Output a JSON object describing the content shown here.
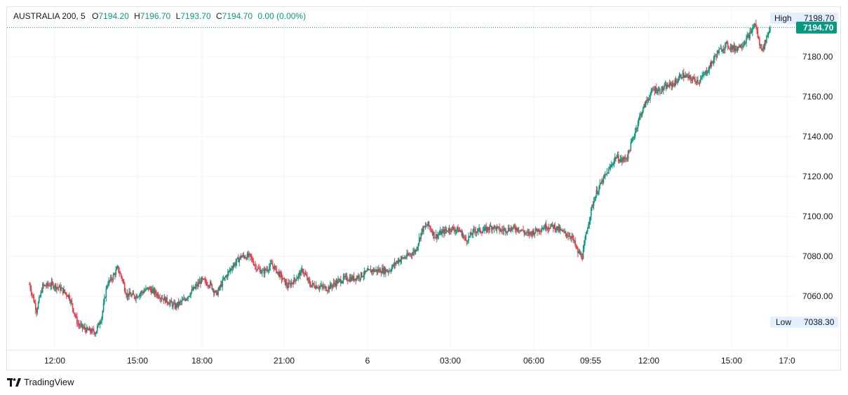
{
  "legend": {
    "symbol": "AUSTRALIA 200, 5",
    "open_label": "O",
    "open": "7194.20",
    "high_label": "H",
    "high": "7196.70",
    "low_label": "L",
    "low": "7193.70",
    "close_label": "C",
    "close": "7194.70",
    "change": "0.00 (0.00%)"
  },
  "price_markers": {
    "high_label": "High",
    "high_value": "7198.70",
    "last_value": "7194.70",
    "low_label": "Low",
    "low_value": "7038.30"
  },
  "colors": {
    "up": "#089981",
    "down": "#f23645",
    "grid": "#f0f3fa",
    "last_price": "#089981",
    "badge_bg": "#e3effd"
  },
  "brand": {
    "name": "TradingView",
    "icon": "tradingview-logo-icon"
  },
  "chart_data": {
    "type": "candlestick",
    "y_axis": {
      "ticks": [
        7060,
        7080,
        7100,
        7120,
        7140,
        7160,
        7180
      ],
      "min": 7033,
      "max": 7205,
      "decimals": 2
    },
    "x_axis": {
      "ticks": [
        "12:00",
        "15:00",
        "18:00",
        "21:00",
        "6",
        "03:00",
        "06:00",
        "09:55",
        "12:00",
        "15:00",
        "17:0"
      ]
    },
    "high": 7198.7,
    "low": 7038.3,
    "last": 7194.7,
    "price_path": [
      [
        0,
        7066
      ],
      [
        8,
        7053
      ],
      [
        15,
        7065
      ],
      [
        25,
        7066
      ],
      [
        35,
        7064
      ],
      [
        45,
        7060
      ],
      [
        55,
        7046
      ],
      [
        65,
        7043
      ],
      [
        75,
        7042
      ],
      [
        82,
        7050
      ],
      [
        88,
        7066
      ],
      [
        95,
        7070
      ],
      [
        100,
        7074
      ],
      [
        105,
        7069
      ],
      [
        110,
        7061
      ],
      [
        120,
        7060
      ],
      [
        135,
        7064
      ],
      [
        145,
        7061
      ],
      [
        155,
        7058
      ],
      [
        165,
        7055
      ],
      [
        175,
        7058
      ],
      [
        185,
        7063
      ],
      [
        195,
        7068
      ],
      [
        205,
        7066
      ],
      [
        212,
        7061
      ],
      [
        220,
        7068
      ],
      [
        230,
        7075
      ],
      [
        240,
        7080
      ],
      [
        250,
        7080
      ],
      [
        258,
        7074
      ],
      [
        265,
        7072
      ],
      [
        275,
        7076
      ],
      [
        285,
        7070
      ],
      [
        293,
        7065
      ],
      [
        300,
        7068
      ],
      [
        310,
        7073
      ],
      [
        318,
        7066
      ],
      [
        328,
        7065
      ],
      [
        338,
        7064
      ],
      [
        348,
        7067
      ],
      [
        358,
        7069
      ],
      [
        368,
        7069
      ],
      [
        378,
        7071
      ],
      [
        388,
        7073
      ],
      [
        398,
        7073
      ],
      [
        408,
        7073
      ],
      [
        418,
        7078
      ],
      [
        428,
        7080
      ],
      [
        438,
        7083
      ],
      [
        445,
        7093
      ],
      [
        452,
        7096
      ],
      [
        460,
        7090
      ],
      [
        468,
        7092
      ],
      [
        478,
        7094
      ],
      [
        488,
        7093
      ],
      [
        495,
        7088
      ],
      [
        505,
        7093
      ],
      [
        515,
        7093
      ],
      [
        525,
        7095
      ],
      [
        535,
        7093
      ],
      [
        545,
        7094
      ],
      [
        555,
        7094
      ],
      [
        565,
        7091
      ],
      [
        575,
        7093
      ],
      [
        585,
        7095
      ],
      [
        595,
        7095
      ],
      [
        605,
        7092
      ],
      [
        615,
        7090
      ],
      [
        622,
        7082
      ],
      [
        627,
        7080
      ],
      [
        633,
        7095
      ],
      [
        638,
        7105
      ],
      [
        643,
        7112
      ],
      [
        650,
        7118
      ],
      [
        658,
        7124
      ],
      [
        665,
        7130
      ],
      [
        672,
        7128
      ],
      [
        678,
        7130
      ],
      [
        685,
        7140
      ],
      [
        692,
        7150
      ],
      [
        700,
        7158
      ],
      [
        708,
        7164
      ],
      [
        715,
        7163
      ],
      [
        722,
        7165
      ],
      [
        732,
        7167
      ],
      [
        740,
        7171
      ],
      [
        750,
        7169
      ],
      [
        760,
        7168
      ],
      [
        770,
        7174
      ],
      [
        780,
        7182
      ],
      [
        790,
        7186
      ],
      [
        800,
        7184
      ],
      [
        810,
        7187
      ],
      [
        818,
        7192
      ],
      [
        823,
        7197
      ],
      [
        828,
        7186
      ],
      [
        832,
        7184
      ],
      [
        836,
        7190
      ],
      [
        840,
        7194.7
      ]
    ]
  }
}
